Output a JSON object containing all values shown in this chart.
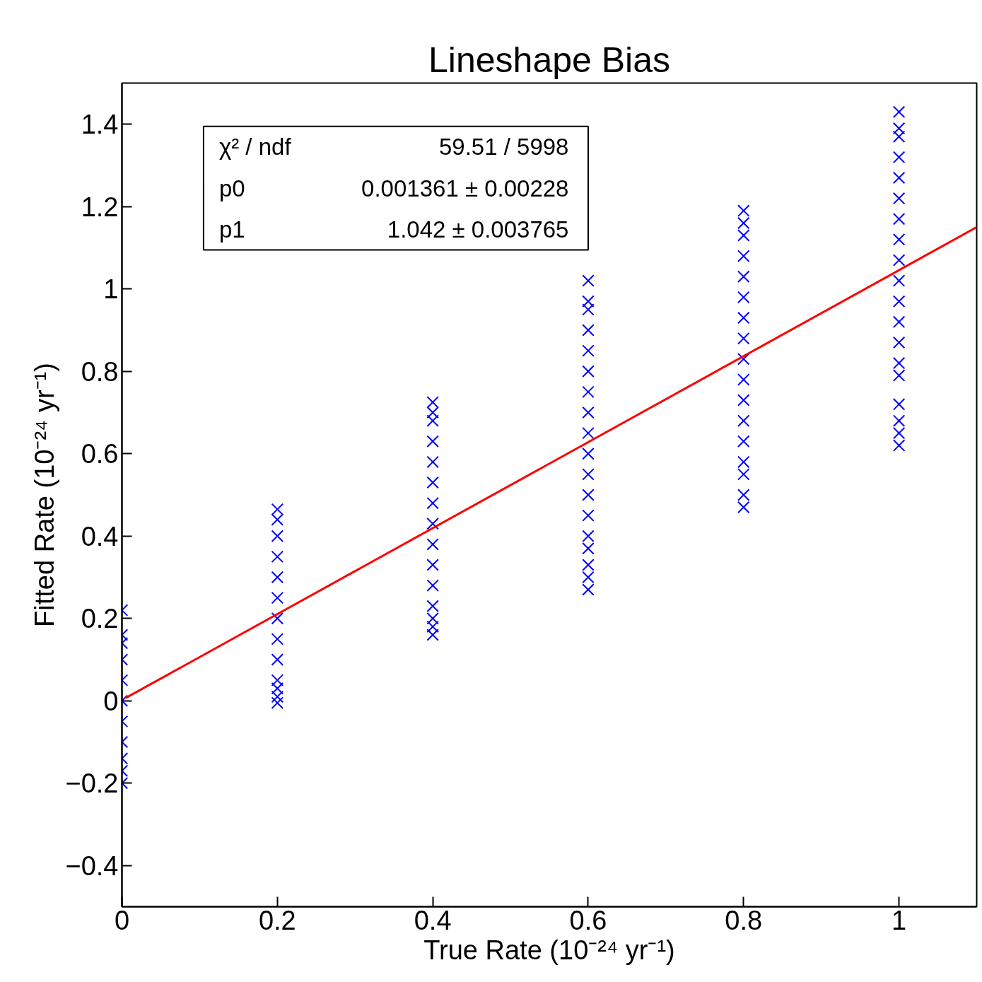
{
  "chart_data": {
    "type": "scatter",
    "title": "Lineshape Bias",
    "xlabel": "True Rate (10⁻²⁴ yr⁻¹)",
    "ylabel": "Fitted Rate (10⁻²⁴ yr⁻¹)",
    "xlim": [
      0,
      1.1
    ],
    "ylim": [
      -0.5,
      1.5
    ],
    "xticks": [
      0,
      0.2,
      0.4,
      0.6,
      0.8,
      1
    ],
    "yticks": [
      {
        "value": -0.4,
        "label": "−0.4"
      },
      {
        "value": -0.2,
        "label": "−0.2"
      },
      0,
      0.2,
      0.4,
      0.6,
      0.8,
      1,
      1.2,
      1.4
    ],
    "grid": false,
    "marker": "cross",
    "series": [
      {
        "color": "#0000ff",
        "x": [
          0,
          0,
          0,
          0,
          0,
          0,
          0,
          0,
          0,
          0,
          0
        ],
        "values": [
          0.22,
          0.16,
          0.14,
          0.1,
          0.05,
          0,
          -0.05,
          -0.1,
          -0.14,
          -0.17,
          -0.2
        ]
      },
      {
        "color": "#0000ff",
        "x": [
          0.2,
          0.2,
          0.2,
          0.2,
          0.2,
          0.2,
          0.2,
          0.2,
          0.2,
          0.2,
          0.2,
          0.2,
          0.2
        ],
        "values": [
          0.465,
          0.44,
          0.4,
          0.35,
          0.3,
          0.25,
          0.2,
          0.15,
          0.1,
          0.05,
          0.03,
          0.01,
          -0.005
        ]
      },
      {
        "color": "#0000ff",
        "x": [
          0.4,
          0.4,
          0.4,
          0.4,
          0.4,
          0.4,
          0.4,
          0.4,
          0.4,
          0.4,
          0.4,
          0.4,
          0.4,
          0.4,
          0.4
        ],
        "values": [
          0.725,
          0.7,
          0.68,
          0.63,
          0.58,
          0.53,
          0.48,
          0.43,
          0.38,
          0.33,
          0.28,
          0.23,
          0.2,
          0.18,
          0.16
        ]
      },
      {
        "color": "#0000ff",
        "x": [
          0.6,
          0.6,
          0.6,
          0.6,
          0.6,
          0.6,
          0.6,
          0.6,
          0.6,
          0.6,
          0.6,
          0.6,
          0.6,
          0.6,
          0.6,
          0.6,
          0.6,
          0.6
        ],
        "values": [
          1.02,
          0.97,
          0.95,
          0.9,
          0.85,
          0.8,
          0.75,
          0.7,
          0.65,
          0.6,
          0.55,
          0.5,
          0.45,
          0.4,
          0.37,
          0.33,
          0.3,
          0.27
        ]
      },
      {
        "color": "#0000ff",
        "x": [
          0.8,
          0.8,
          0.8,
          0.8,
          0.8,
          0.8,
          0.8,
          0.8,
          0.8,
          0.8,
          0.8,
          0.8,
          0.8,
          0.8,
          0.8,
          0.8,
          0.8
        ],
        "values": [
          1.19,
          1.16,
          1.13,
          1.08,
          1.03,
          0.98,
          0.93,
          0.88,
          0.83,
          0.78,
          0.73,
          0.68,
          0.63,
          0.58,
          0.55,
          0.5,
          0.47
        ]
      },
      {
        "color": "#0000ff",
        "x": [
          1,
          1,
          1,
          1,
          1,
          1,
          1,
          1,
          1,
          1,
          1,
          1,
          1,
          1,
          1,
          1,
          1,
          1,
          1
        ],
        "values": [
          1.43,
          1.39,
          1.37,
          1.32,
          1.27,
          1.22,
          1.17,
          1.12,
          1.07,
          1.02,
          0.97,
          0.92,
          0.87,
          0.82,
          0.79,
          0.72,
          0.68,
          0.65,
          0.62
        ]
      },
      {
        "type": "line",
        "color": "#ff0000",
        "x": [
          0.005,
          1.1
        ],
        "values": [
          0.007,
          1.15
        ],
        "marker": "none"
      }
    ],
    "annotations": [
      "χ² / ndf",
      "59.51 / 5998",
      "p0",
      "0.001361 ± 0.00228",
      "p1",
      "1.042 ± 0.003765"
    ]
  }
}
